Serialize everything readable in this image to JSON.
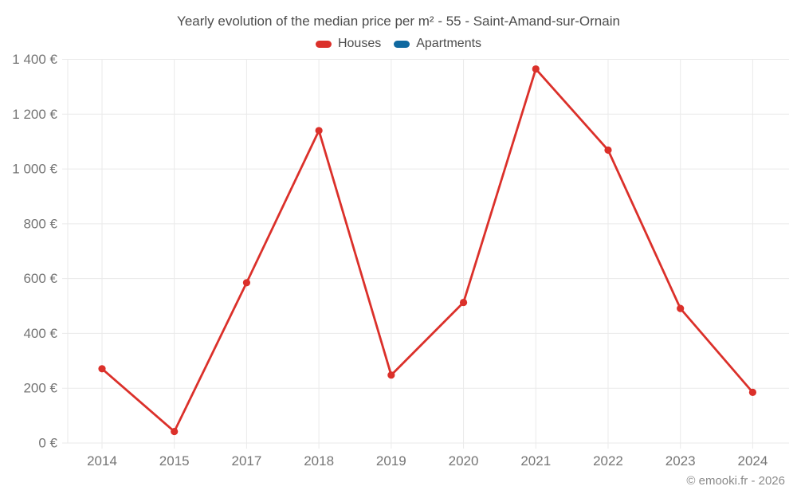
{
  "chart_data": {
    "type": "line",
    "title": "Yearly evolution of the median price per m² - 55 - Saint-Amand-sur-Ornain",
    "categories": [
      "2014",
      "2015",
      "2017",
      "2018",
      "2019",
      "2020",
      "2021",
      "2022",
      "2023",
      "2024"
    ],
    "series": [
      {
        "name": "Houses",
        "color": "#db302a",
        "values": [
          271,
          42,
          585,
          1140,
          248,
          513,
          1365,
          1069,
          491,
          185
        ]
      },
      {
        "name": "Apartments",
        "color": "#1069a0",
        "values": []
      }
    ],
    "xlabel": "",
    "ylabel": "",
    "ylim": [
      0,
      1400
    ],
    "ytick_step": 200,
    "ytick_labels": [
      "0 €",
      "200 €",
      "400 €",
      "600 €",
      "800 €",
      "1 000 €",
      "1 200 €",
      "1 400 €"
    ],
    "legend_position": "top",
    "grid": true
  },
  "footer": {
    "copyright": "© emooki.fr - 2026"
  },
  "colors": {
    "background": "#ffffff",
    "grid": "#eaeaea",
    "axis_tick_label": "#757575",
    "title_text": "#4c4c4c",
    "legend_text": "#4c4c4c",
    "copyright_text": "#8a8a8a"
  }
}
